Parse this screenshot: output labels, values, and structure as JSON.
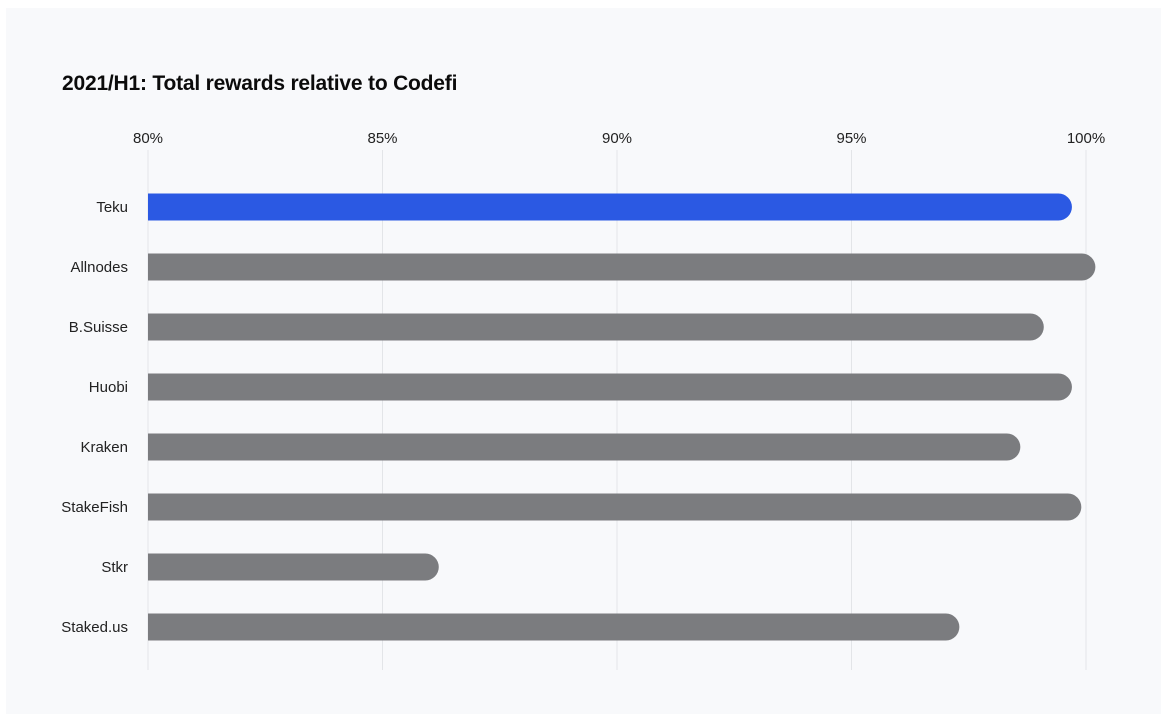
{
  "chart_data": {
    "type": "bar",
    "orientation": "horizontal",
    "title": "2021/H1: Total rewards relative to Codefi",
    "xlabel": "",
    "ylabel": "",
    "xlim": [
      80,
      100
    ],
    "x_ticks": [
      80,
      85,
      90,
      95,
      100
    ],
    "x_tick_labels": [
      "80%",
      "85%",
      "90%",
      "95%",
      "100%"
    ],
    "grid": true,
    "categories": [
      "Teku",
      "Allnodes",
      "B.Suisse",
      "Huobi",
      "Kraken",
      "StakeFish",
      "Stkr",
      "Staked.us"
    ],
    "values": [
      99.7,
      100.2,
      99.1,
      99.7,
      98.6,
      99.9,
      86.2,
      97.3
    ],
    "colors": {
      "highlight": "#2b59e3",
      "default": "#7b7c7f"
    },
    "highlight_category": "Teku"
  }
}
